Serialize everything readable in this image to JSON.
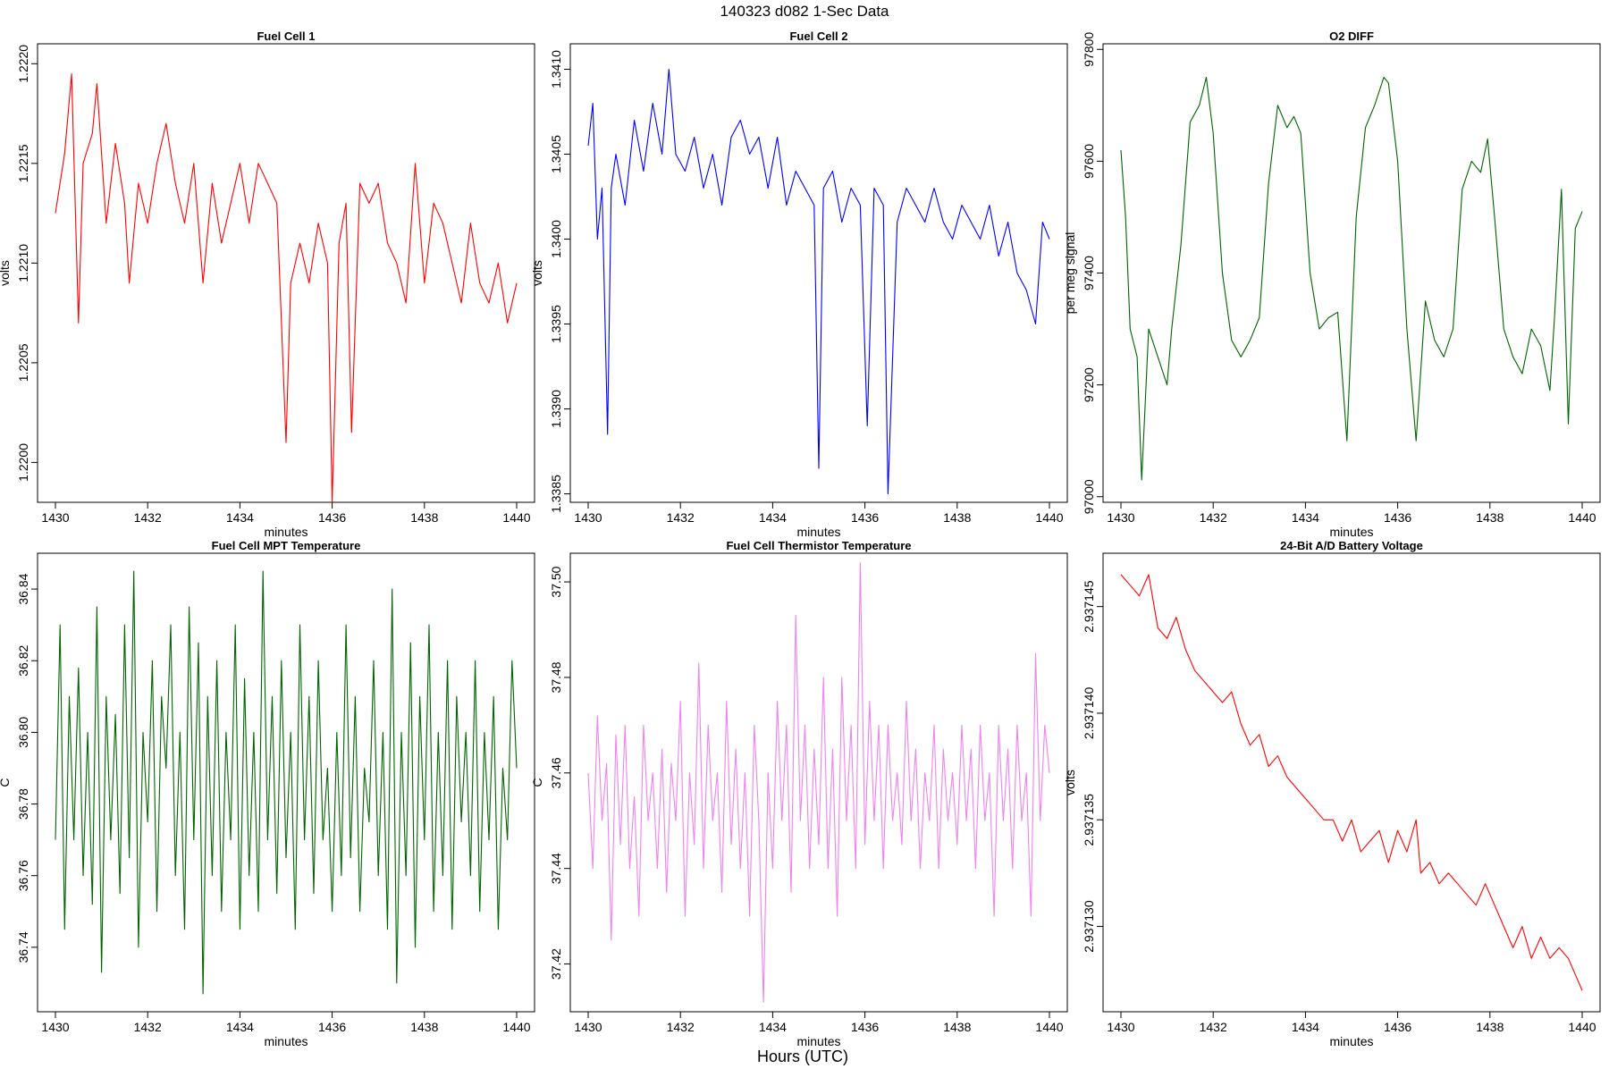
{
  "page": {
    "title": "140323   d082   1-Sec Data",
    "footer_label": "Hours (UTC)"
  },
  "chart_data": [
    {
      "type": "line",
      "title": "Fuel Cell 1",
      "xlabel": "minutes",
      "ylabel": "volts",
      "color": "#ff0000",
      "xlim": [
        1430,
        1440
      ],
      "ylim": [
        1.2198,
        1.2221
      ],
      "xticks": [
        1430,
        1432,
        1434,
        1436,
        1438,
        1440
      ],
      "xtick_labels": [
        "1430",
        "1432",
        "1434",
        "1436",
        "1438",
        "1440"
      ],
      "yticks": [
        1.22,
        1.2205,
        1.221,
        1.2215,
        1.222
      ],
      "ytick_labels": [
        "1.2200",
        "1.2205",
        "1.2210",
        "1.2215",
        "1.2220"
      ],
      "x": [
        1430.0,
        1430.2,
        1430.35,
        1430.5,
        1430.6,
        1430.8,
        1430.9,
        1431.1,
        1431.3,
        1431.5,
        1431.6,
        1431.8,
        1432.0,
        1432.2,
        1432.4,
        1432.6,
        1432.8,
        1433.0,
        1433.2,
        1433.4,
        1433.6,
        1433.8,
        1434.0,
        1434.2,
        1434.4,
        1434.6,
        1434.8,
        1435.0,
        1435.1,
        1435.3,
        1435.5,
        1435.7,
        1435.9,
        1436.0,
        1436.15,
        1436.3,
        1436.42,
        1436.6,
        1436.8,
        1437.0,
        1437.2,
        1437.4,
        1437.6,
        1437.8,
        1438.0,
        1438.2,
        1438.4,
        1438.6,
        1438.8,
        1439.0,
        1439.2,
        1439.4,
        1439.6,
        1439.8,
        1440.0
      ],
      "y": [
        1.22125,
        1.22155,
        1.22195,
        1.2207,
        1.2215,
        1.22165,
        1.2219,
        1.2212,
        1.2216,
        1.2213,
        1.2209,
        1.2214,
        1.2212,
        1.2215,
        1.2217,
        1.2214,
        1.2212,
        1.2215,
        1.2209,
        1.2214,
        1.2211,
        1.2213,
        1.2215,
        1.2212,
        1.2215,
        1.2214,
        1.2213,
        1.2201,
        1.2209,
        1.2211,
        1.2209,
        1.2212,
        1.221,
        1.2198,
        1.2211,
        1.2213,
        1.22015,
        1.2214,
        1.2213,
        1.2214,
        1.2211,
        1.221,
        1.2208,
        1.2215,
        1.2209,
        1.2213,
        1.2212,
        1.221,
        1.2208,
        1.2212,
        1.2209,
        1.2208,
        1.221,
        1.2207,
        1.2209
      ]
    },
    {
      "type": "line",
      "title": "Fuel Cell 2",
      "xlabel": "minutes",
      "ylabel": "volts",
      "color": "#0000ff",
      "xlim": [
        1430,
        1440
      ],
      "ylim": [
        1.33845,
        1.34115
      ],
      "xticks": [
        1430,
        1432,
        1434,
        1436,
        1438,
        1440
      ],
      "xtick_labels": [
        "1430",
        "1432",
        "1434",
        "1436",
        "1438",
        "1440"
      ],
      "yticks": [
        1.3385,
        1.339,
        1.3395,
        1.34,
        1.3405,
        1.341
      ],
      "ytick_labels": [
        "1.3385",
        "1.3390",
        "1.3395",
        "1.3400",
        "1.3405",
        "1.3410"
      ],
      "x": [
        1430.0,
        1430.1,
        1430.2,
        1430.3,
        1430.42,
        1430.5,
        1430.6,
        1430.8,
        1431.0,
        1431.2,
        1431.4,
        1431.6,
        1431.75,
        1431.9,
        1432.1,
        1432.3,
        1432.5,
        1432.7,
        1432.9,
        1433.1,
        1433.3,
        1433.5,
        1433.7,
        1433.9,
        1434.1,
        1434.3,
        1434.5,
        1434.7,
        1434.9,
        1435.0,
        1435.1,
        1435.3,
        1435.5,
        1435.7,
        1435.9,
        1436.05,
        1436.2,
        1436.4,
        1436.5,
        1436.7,
        1436.9,
        1437.1,
        1437.3,
        1437.5,
        1437.7,
        1437.9,
        1438.1,
        1438.3,
        1438.5,
        1438.7,
        1438.9,
        1439.1,
        1439.3,
        1439.5,
        1439.7,
        1439.85,
        1440.0
      ],
      "y": [
        1.34055,
        1.3408,
        1.34,
        1.3403,
        1.33885,
        1.3403,
        1.3405,
        1.3402,
        1.3407,
        1.3404,
        1.3408,
        1.3405,
        1.341,
        1.3405,
        1.3404,
        1.3406,
        1.3403,
        1.3405,
        1.3402,
        1.3406,
        1.3407,
        1.3405,
        1.3406,
        1.3403,
        1.3406,
        1.3402,
        1.3404,
        1.3403,
        1.3402,
        1.33865,
        1.3403,
        1.3404,
        1.3401,
        1.3403,
        1.3402,
        1.3389,
        1.3403,
        1.3402,
        1.3385,
        1.3401,
        1.3403,
        1.3402,
        1.3401,
        1.3403,
        1.3401,
        1.34,
        1.3402,
        1.3401,
        1.34,
        1.3402,
        1.3399,
        1.3401,
        1.3398,
        1.3397,
        1.3395,
        1.3401,
        1.34
      ]
    },
    {
      "type": "line",
      "title": "O2 DIFF",
      "xlabel": "minutes",
      "ylabel": "per meg signal",
      "color": "#006400",
      "xlim": [
        1430,
        1440
      ],
      "ylim": [
        96990,
        97810
      ],
      "xticks": [
        1430,
        1432,
        1434,
        1436,
        1438,
        1440
      ],
      "xtick_labels": [
        "1430",
        "1432",
        "1434",
        "1436",
        "1438",
        "1440"
      ],
      "yticks": [
        97000,
        97200,
        97400,
        97600,
        97800
      ],
      "ytick_labels": [
        "97000",
        "97200",
        "97400",
        "97600",
        "97800"
      ],
      "x": [
        1430.0,
        1430.1,
        1430.2,
        1430.35,
        1430.45,
        1430.6,
        1430.8,
        1431.0,
        1431.1,
        1431.3,
        1431.5,
        1431.7,
        1431.85,
        1432.0,
        1432.2,
        1432.4,
        1432.6,
        1432.8,
        1433.0,
        1433.2,
        1433.4,
        1433.6,
        1433.75,
        1433.9,
        1434.1,
        1434.3,
        1434.5,
        1434.7,
        1434.9,
        1435.1,
        1435.3,
        1435.5,
        1435.7,
        1435.8,
        1436.0,
        1436.2,
        1436.4,
        1436.6,
        1436.8,
        1437.0,
        1437.2,
        1437.4,
        1437.6,
        1437.8,
        1437.95,
        1438.1,
        1438.3,
        1438.5,
        1438.7,
        1438.9,
        1439.1,
        1439.3,
        1439.4,
        1439.55,
        1439.7,
        1439.85,
        1440.0
      ],
      "y": [
        97620,
        97500,
        97300,
        97250,
        97030,
        97300,
        97250,
        97200,
        97300,
        97450,
        97670,
        97700,
        97750,
        97650,
        97400,
        97280,
        97250,
        97280,
        97320,
        97560,
        97700,
        97660,
        97680,
        97650,
        97400,
        97300,
        97320,
        97330,
        97100,
        97500,
        97660,
        97700,
        97750,
        97740,
        97600,
        97300,
        97100,
        97350,
        97280,
        97250,
        97300,
        97550,
        97600,
        97580,
        97640,
        97500,
        97300,
        97250,
        97220,
        97300,
        97270,
        97190,
        97320,
        97550,
        97130,
        97480,
        97510
      ]
    },
    {
      "type": "line",
      "title": "Fuel Cell MPT Temperature",
      "xlabel": "minutes",
      "ylabel": "C",
      "color": "#006400",
      "xlim": [
        1430,
        1440
      ],
      "ylim": [
        36.722,
        36.85
      ],
      "xticks": [
        1430,
        1432,
        1434,
        1436,
        1438,
        1440
      ],
      "xtick_labels": [
        "1430",
        "1432",
        "1434",
        "1436",
        "1438",
        "1440"
      ],
      "yticks": [
        36.74,
        36.76,
        36.78,
        36.8,
        36.82,
        36.84
      ],
      "ytick_labels": [
        "36.74",
        "36.76",
        "36.78",
        "36.80",
        "36.82",
        "36.84"
      ],
      "x": [
        1430.0,
        1430.1,
        1430.2,
        1430.3,
        1430.4,
        1430.5,
        1430.6,
        1430.7,
        1430.8,
        1430.9,
        1431.0,
        1431.1,
        1431.2,
        1431.3,
        1431.4,
        1431.5,
        1431.6,
        1431.7,
        1431.8,
        1431.9,
        1432.0,
        1432.1,
        1432.2,
        1432.3,
        1432.4,
        1432.5,
        1432.6,
        1432.7,
        1432.8,
        1432.9,
        1433.0,
        1433.1,
        1433.2,
        1433.3,
        1433.4,
        1433.5,
        1433.6,
        1433.7,
        1433.8,
        1433.9,
        1434.0,
        1434.1,
        1434.2,
        1434.3,
        1434.4,
        1434.5,
        1434.6,
        1434.7,
        1434.8,
        1434.9,
        1435.0,
        1435.1,
        1435.2,
        1435.3,
        1435.4,
        1435.5,
        1435.6,
        1435.7,
        1435.8,
        1435.9,
        1436.0,
        1436.1,
        1436.2,
        1436.3,
        1436.4,
        1436.5,
        1436.6,
        1436.7,
        1436.8,
        1436.9,
        1437.0,
        1437.1,
        1437.2,
        1437.3,
        1437.4,
        1437.5,
        1437.6,
        1437.7,
        1437.8,
        1437.9,
        1438.0,
        1438.1,
        1438.2,
        1438.3,
        1438.4,
        1438.5,
        1438.6,
        1438.7,
        1438.8,
        1438.9,
        1439.0,
        1439.1,
        1439.2,
        1439.3,
        1439.4,
        1439.5,
        1439.6,
        1439.7,
        1439.8,
        1439.9,
        1440.0
      ],
      "y": [
        36.77,
        36.83,
        36.745,
        36.81,
        36.77,
        36.818,
        36.76,
        36.8,
        36.752,
        36.835,
        36.733,
        36.81,
        36.77,
        36.805,
        36.755,
        36.83,
        36.765,
        36.845,
        36.74,
        36.8,
        36.775,
        36.82,
        36.75,
        36.81,
        36.79,
        36.83,
        36.76,
        36.8,
        36.745,
        36.835,
        36.77,
        36.825,
        36.727,
        36.81,
        36.76,
        36.82,
        36.75,
        36.8,
        36.77,
        36.83,
        36.745,
        36.815,
        36.76,
        36.8,
        36.75,
        36.845,
        36.77,
        36.81,
        36.755,
        36.82,
        36.765,
        36.8,
        36.745,
        36.83,
        36.77,
        36.81,
        36.755,
        36.82,
        36.77,
        36.79,
        36.75,
        36.8,
        36.76,
        36.83,
        36.765,
        36.81,
        36.75,
        36.79,
        36.775,
        36.82,
        36.76,
        36.8,
        36.745,
        36.84,
        36.73,
        36.8,
        36.76,
        36.825,
        36.74,
        36.81,
        36.77,
        36.83,
        36.75,
        36.8,
        36.76,
        36.82,
        36.745,
        36.81,
        36.775,
        36.8,
        36.76,
        36.82,
        36.75,
        36.8,
        36.77,
        36.81,
        36.745,
        36.79,
        36.77,
        36.82,
        36.79
      ]
    },
    {
      "type": "line",
      "title": "Fuel Cell Thermistor Temperature",
      "xlabel": "minutes",
      "ylabel": "C",
      "color": "#ee82ee",
      "xlim": [
        1430,
        1440
      ],
      "ylim": [
        37.41,
        37.506
      ],
      "xticks": [
        1430,
        1432,
        1434,
        1436,
        1438,
        1440
      ],
      "xtick_labels": [
        "1430",
        "1432",
        "1434",
        "1436",
        "1438",
        "1440"
      ],
      "yticks": [
        37.42,
        37.44,
        37.46,
        37.48,
        37.5
      ],
      "ytick_labels": [
        "37.42",
        "37.44",
        "37.46",
        "37.48",
        "37.50"
      ],
      "x": [
        1430.0,
        1430.1,
        1430.2,
        1430.3,
        1430.4,
        1430.5,
        1430.6,
        1430.7,
        1430.8,
        1430.9,
        1431.0,
        1431.1,
        1431.2,
        1431.3,
        1431.4,
        1431.5,
        1431.6,
        1431.7,
        1431.8,
        1431.9,
        1432.0,
        1432.1,
        1432.2,
        1432.3,
        1432.4,
        1432.5,
        1432.6,
        1432.7,
        1432.8,
        1432.9,
        1433.0,
        1433.1,
        1433.2,
        1433.3,
        1433.4,
        1433.5,
        1433.6,
        1433.7,
        1433.8,
        1433.9,
        1434.0,
        1434.1,
        1434.2,
        1434.3,
        1434.4,
        1434.5,
        1434.6,
        1434.7,
        1434.8,
        1434.9,
        1435.0,
        1435.1,
        1435.2,
        1435.3,
        1435.4,
        1435.5,
        1435.6,
        1435.7,
        1435.8,
        1435.9,
        1436.0,
        1436.1,
        1436.2,
        1436.3,
        1436.4,
        1436.5,
        1436.6,
        1436.7,
        1436.8,
        1436.9,
        1437.0,
        1437.1,
        1437.2,
        1437.3,
        1437.4,
        1437.5,
        1437.6,
        1437.7,
        1437.8,
        1437.9,
        1438.0,
        1438.1,
        1438.2,
        1438.3,
        1438.4,
        1438.5,
        1438.6,
        1438.7,
        1438.8,
        1438.9,
        1439.0,
        1439.1,
        1439.2,
        1439.3,
        1439.4,
        1439.5,
        1439.6,
        1439.7,
        1439.8,
        1439.9,
        1440.0
      ],
      "y": [
        37.46,
        37.44,
        37.472,
        37.45,
        37.462,
        37.425,
        37.468,
        37.445,
        37.47,
        37.44,
        37.455,
        37.43,
        37.47,
        37.45,
        37.46,
        37.44,
        37.465,
        37.435,
        37.462,
        37.45,
        37.475,
        37.43,
        37.46,
        37.445,
        37.483,
        37.44,
        37.47,
        37.45,
        37.46,
        37.435,
        37.475,
        37.445,
        37.465,
        37.44,
        37.46,
        37.43,
        37.47,
        37.45,
        37.412,
        37.46,
        37.44,
        37.475,
        37.45,
        37.47,
        37.435,
        37.493,
        37.45,
        37.47,
        37.44,
        37.465,
        37.445,
        37.48,
        37.44,
        37.465,
        37.43,
        37.48,
        37.45,
        37.47,
        37.44,
        37.504,
        37.445,
        37.475,
        37.45,
        37.47,
        37.44,
        37.47,
        37.45,
        37.46,
        37.445,
        37.475,
        37.45,
        37.465,
        37.44,
        37.46,
        37.45,
        37.47,
        37.44,
        37.465,
        37.45,
        37.46,
        37.445,
        37.47,
        37.45,
        37.465,
        37.44,
        37.47,
        37.45,
        37.46,
        37.43,
        37.47,
        37.45,
        37.465,
        37.44,
        37.47,
        37.45,
        37.46,
        37.43,
        37.485,
        37.45,
        37.47,
        37.46
      ]
    },
    {
      "type": "line",
      "title": "24-Bit A/D Battery Voltage",
      "xlabel": "minutes",
      "ylabel": "volts",
      "color": "#ff0000",
      "xlim": [
        1430,
        1440
      ],
      "ylim": [
        2.937126,
        2.9371475
      ],
      "xticks": [
        1430,
        1432,
        1434,
        1436,
        1438,
        1440
      ],
      "xtick_labels": [
        "1430",
        "1432",
        "1434",
        "1436",
        "1438",
        "1440"
      ],
      "yticks": [
        2.93713,
        2.937135,
        2.93714,
        2.937145
      ],
      "ytick_labels": [
        "2.937130",
        "2.937135",
        "2.937140",
        "2.937145"
      ],
      "x": [
        1430.0,
        1430.2,
        1430.4,
        1430.6,
        1430.8,
        1431.0,
        1431.2,
        1431.4,
        1431.6,
        1431.8,
        1432.0,
        1432.2,
        1432.4,
        1432.6,
        1432.8,
        1433.0,
        1433.2,
        1433.4,
        1433.6,
        1433.8,
        1434.0,
        1434.2,
        1434.4,
        1434.6,
        1434.8,
        1435.0,
        1435.2,
        1435.4,
        1435.6,
        1435.8,
        1436.0,
        1436.2,
        1436.4,
        1436.5,
        1436.7,
        1436.9,
        1437.1,
        1437.3,
        1437.5,
        1437.7,
        1437.9,
        1438.1,
        1438.3,
        1438.5,
        1438.7,
        1438.9,
        1439.1,
        1439.3,
        1439.5,
        1439.7,
        1439.9,
        1440.0
      ],
      "y": [
        2.9371465,
        2.937146,
        2.9371455,
        2.9371465,
        2.937144,
        2.9371435,
        2.9371445,
        2.937143,
        2.937142,
        2.9371415,
        2.937141,
        2.9371405,
        2.937141,
        2.9371395,
        2.9371385,
        2.937139,
        2.9371375,
        2.937138,
        2.937137,
        2.9371365,
        2.937136,
        2.9371355,
        2.937135,
        2.937135,
        2.937134,
        2.937135,
        2.9371335,
        2.937134,
        2.9371345,
        2.937133,
        2.9371345,
        2.9371335,
        2.937135,
        2.9371325,
        2.937133,
        2.937132,
        2.9371325,
        2.937132,
        2.9371315,
        2.937131,
        2.937132,
        2.937131,
        2.93713,
        2.937129,
        2.93713,
        2.9371285,
        2.9371295,
        2.9371285,
        2.937129,
        2.9371285,
        2.9371275,
        2.937127
      ]
    }
  ]
}
